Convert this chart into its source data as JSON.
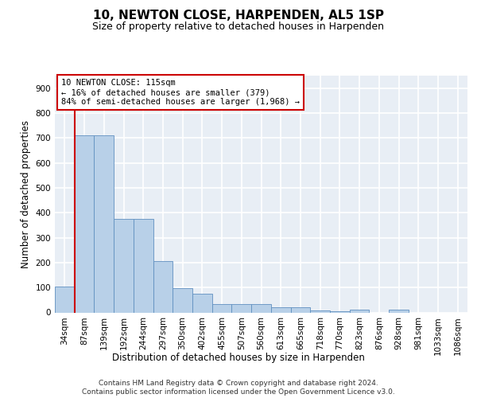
{
  "title": "10, NEWTON CLOSE, HARPENDEN, AL5 1SP",
  "subtitle": "Size of property relative to detached houses in Harpenden",
  "xlabel": "Distribution of detached houses by size in Harpenden",
  "ylabel": "Number of detached properties",
  "categories": [
    "34sqm",
    "87sqm",
    "139sqm",
    "192sqm",
    "244sqm",
    "297sqm",
    "350sqm",
    "402sqm",
    "455sqm",
    "507sqm",
    "560sqm",
    "613sqm",
    "665sqm",
    "718sqm",
    "770sqm",
    "823sqm",
    "876sqm",
    "928sqm",
    "981sqm",
    "1033sqm",
    "1086sqm"
  ],
  "values": [
    103,
    710,
    710,
    375,
    375,
    207,
    97,
    75,
    32,
    33,
    33,
    20,
    22,
    8,
    5,
    10,
    0,
    10,
    0,
    0,
    0
  ],
  "bar_color": "#b8d0e8",
  "bar_edge_color": "#6090c0",
  "vline_color": "#cc0000",
  "annotation_text": "10 NEWTON CLOSE: 115sqm\n← 16% of detached houses are smaller (379)\n84% of semi-detached houses are larger (1,968) →",
  "annotation_box_color": "#cc0000",
  "annotation_fontsize": 7.5,
  "background_color": "#e8eef5",
  "grid_color": "#ffffff",
  "footer": "Contains HM Land Registry data © Crown copyright and database right 2024.\nContains public sector information licensed under the Open Government Licence v3.0.",
  "ylim": [
    0,
    950
  ],
  "yticks": [
    0,
    100,
    200,
    300,
    400,
    500,
    600,
    700,
    800,
    900
  ],
  "title_fontsize": 11,
  "subtitle_fontsize": 9,
  "xlabel_fontsize": 8.5,
  "ylabel_fontsize": 8.5,
  "tick_fontsize": 7.5,
  "footer_fontsize": 6.5
}
